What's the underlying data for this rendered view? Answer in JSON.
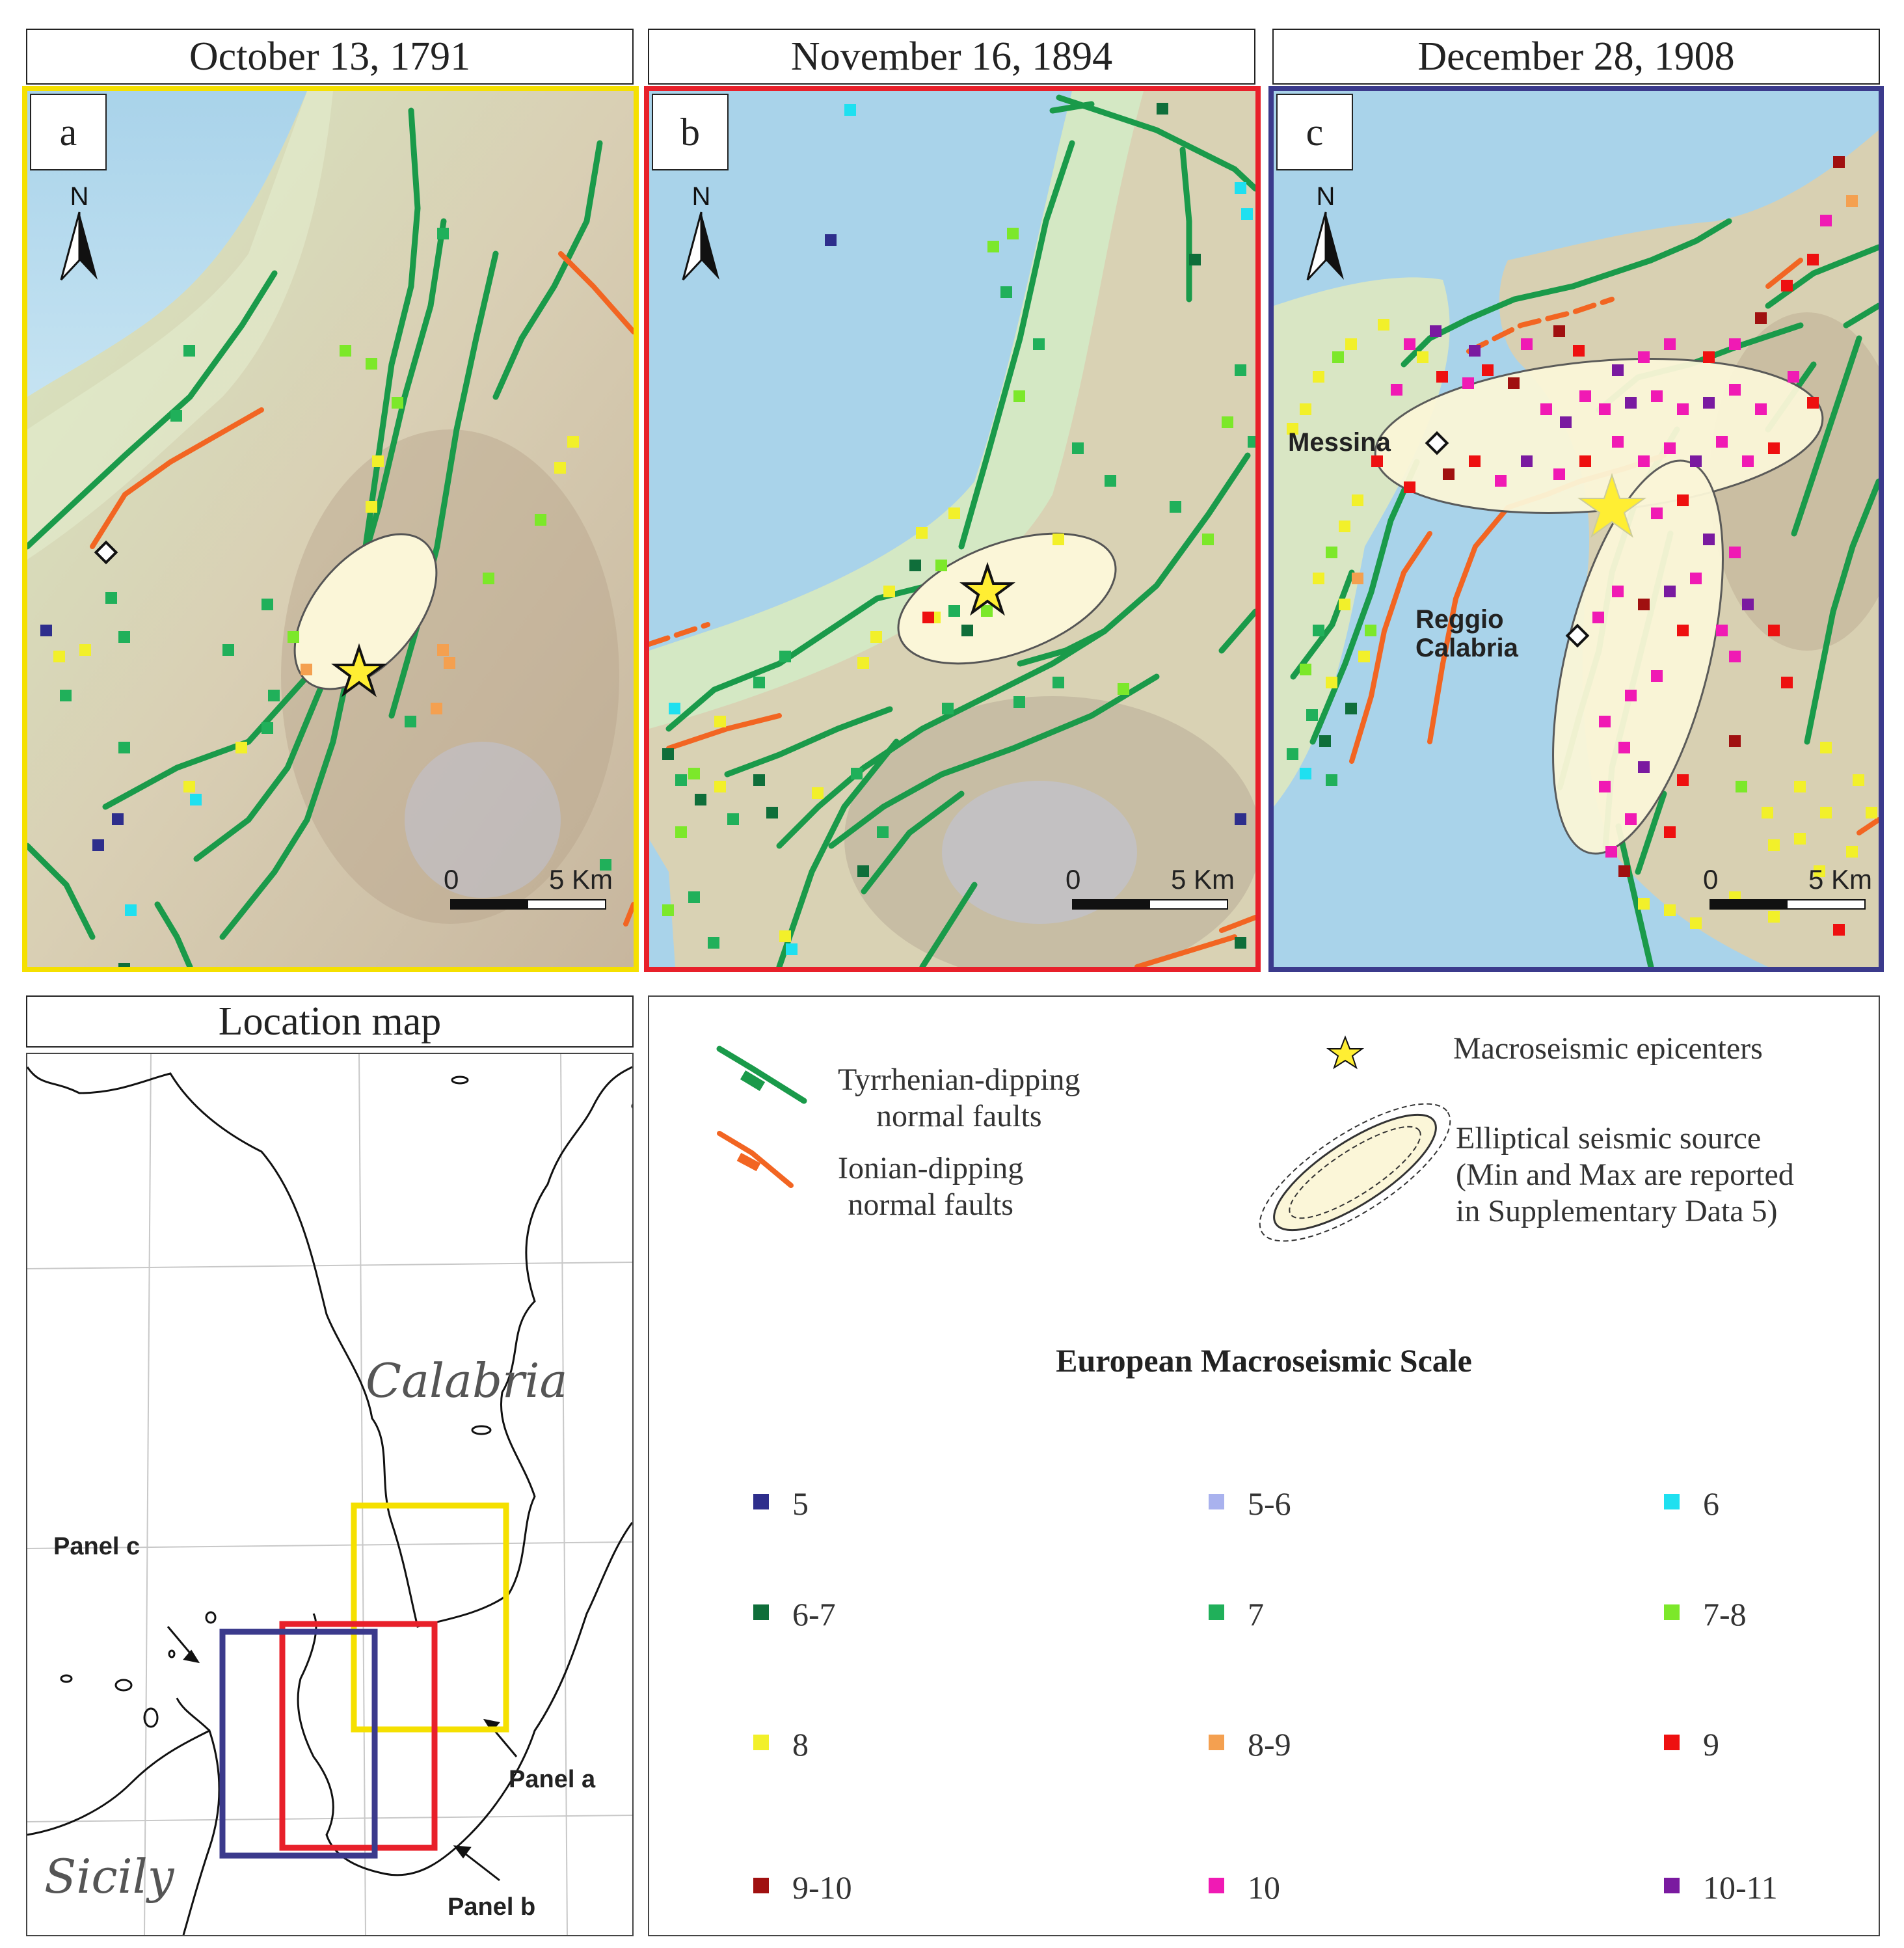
{
  "panels": [
    {
      "id": "a",
      "title": "October 13, 1791",
      "letter": "a",
      "border_color": "#f5e000"
    },
    {
      "id": "b",
      "title": "November 16, 1894",
      "letter": "b",
      "border_color": "#e8202a"
    },
    {
      "id": "c",
      "title": "December 28, 1908",
      "letter": "c",
      "border_color": "#3b3a8c"
    }
  ],
  "north_label": "N",
  "scale_bar": {
    "zero": "0",
    "distance": "5 Km"
  },
  "place_labels": {
    "messina": "Messina",
    "reggio": "Reggio\nCalabria"
  },
  "location_map": {
    "title": "Location map",
    "region_calabria": "Calabria",
    "region_sicily": "Sicily",
    "panel_a": "Panel a",
    "panel_b": "Panel b",
    "panel_c": "Panel c"
  },
  "legend": {
    "tyrrhenian": "Tyrrhenian-dipping\nnormal faults",
    "ionian": "Ionian-dipping\nnormal faults",
    "epicenter": "Macroseismic epicenters",
    "ellipse": "Elliptical seismic source\n(Min and Max are reported\nin Supplementary Data 5)",
    "scale_title": "European Macroseismic Scale",
    "tyrrhenian_color": "#1a9a4a",
    "ionian_color": "#f26522",
    "epicenter_color": "#ffee33"
  },
  "ems_scale": [
    {
      "label": "5",
      "color": "#2e2e8c"
    },
    {
      "label": "5-6",
      "color": "#a9b2ee"
    },
    {
      "label": "6",
      "color": "#1fe0f0"
    },
    {
      "label": "6-7",
      "color": "#0f6e3a"
    },
    {
      "label": "7",
      "color": "#20b05a"
    },
    {
      "label": "7-8",
      "color": "#7ce82a"
    },
    {
      "label": "8",
      "color": "#f2f02a"
    },
    {
      "label": "8-9",
      "color": "#f4a050"
    },
    {
      "label": "9",
      "color": "#ee1010"
    },
    {
      "label": "9-10",
      "color": "#a01010"
    },
    {
      "label": "10",
      "color": "#f01ab4"
    },
    {
      "label": "10-11",
      "color": "#7a1aa0"
    }
  ]
}
